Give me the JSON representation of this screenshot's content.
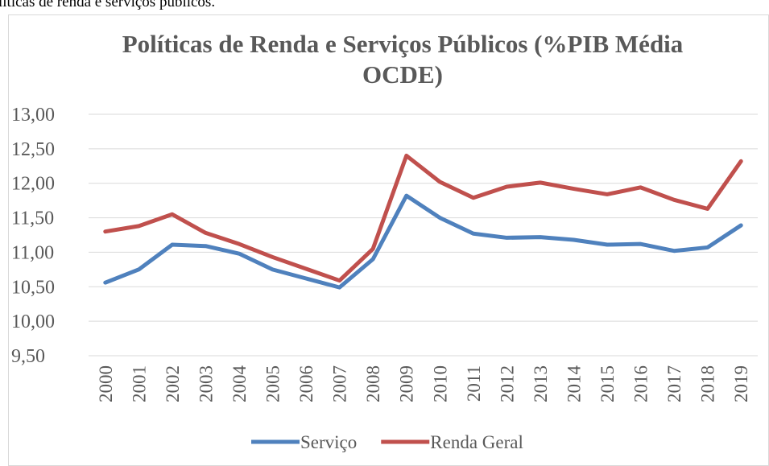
{
  "caption": "líticas de renda e serviços públicos.",
  "chart_data": {
    "type": "line",
    "title": "Políticas de Renda e Serviços Públicos (%PIB Média OCDE)",
    "categories": [
      "2000",
      "2001",
      "2002",
      "2003",
      "2004",
      "2005",
      "2006",
      "2007",
      "2008",
      "2009",
      "2010",
      "2011",
      "2012",
      "2013",
      "2014",
      "2015",
      "2016",
      "2017",
      "2018",
      "2019"
    ],
    "series": [
      {
        "name": "Serviço",
        "color": "#4f81bd",
        "values": [
          10.56,
          10.75,
          11.11,
          11.09,
          10.98,
          10.75,
          10.62,
          10.49,
          10.9,
          11.82,
          11.5,
          11.27,
          11.21,
          11.22,
          11.18,
          11.11,
          11.12,
          11.02,
          11.07,
          11.39
        ]
      },
      {
        "name": "Renda Geral",
        "color": "#c0504d",
        "values": [
          11.3,
          11.38,
          11.55,
          11.28,
          11.12,
          10.93,
          10.76,
          10.59,
          11.05,
          12.4,
          12.02,
          11.79,
          11.95,
          12.01,
          11.92,
          11.84,
          11.94,
          11.76,
          11.63,
          12.32
        ]
      }
    ],
    "ylim": [
      9.5,
      13
    ],
    "yticks": [
      {
        "value": 9.5,
        "label": "9,50"
      },
      {
        "value": 10,
        "label": "10,00"
      },
      {
        "value": 10.5,
        "label": "10,50"
      },
      {
        "value": 11,
        "label": "11,00"
      },
      {
        "value": 11.5,
        "label": "11,50"
      },
      {
        "value": 12,
        "label": "12,00"
      },
      {
        "value": 12.5,
        "label": "12,50"
      },
      {
        "value": 13,
        "label": "13,00"
      }
    ],
    "grid": true,
    "legend": "bottom"
  }
}
